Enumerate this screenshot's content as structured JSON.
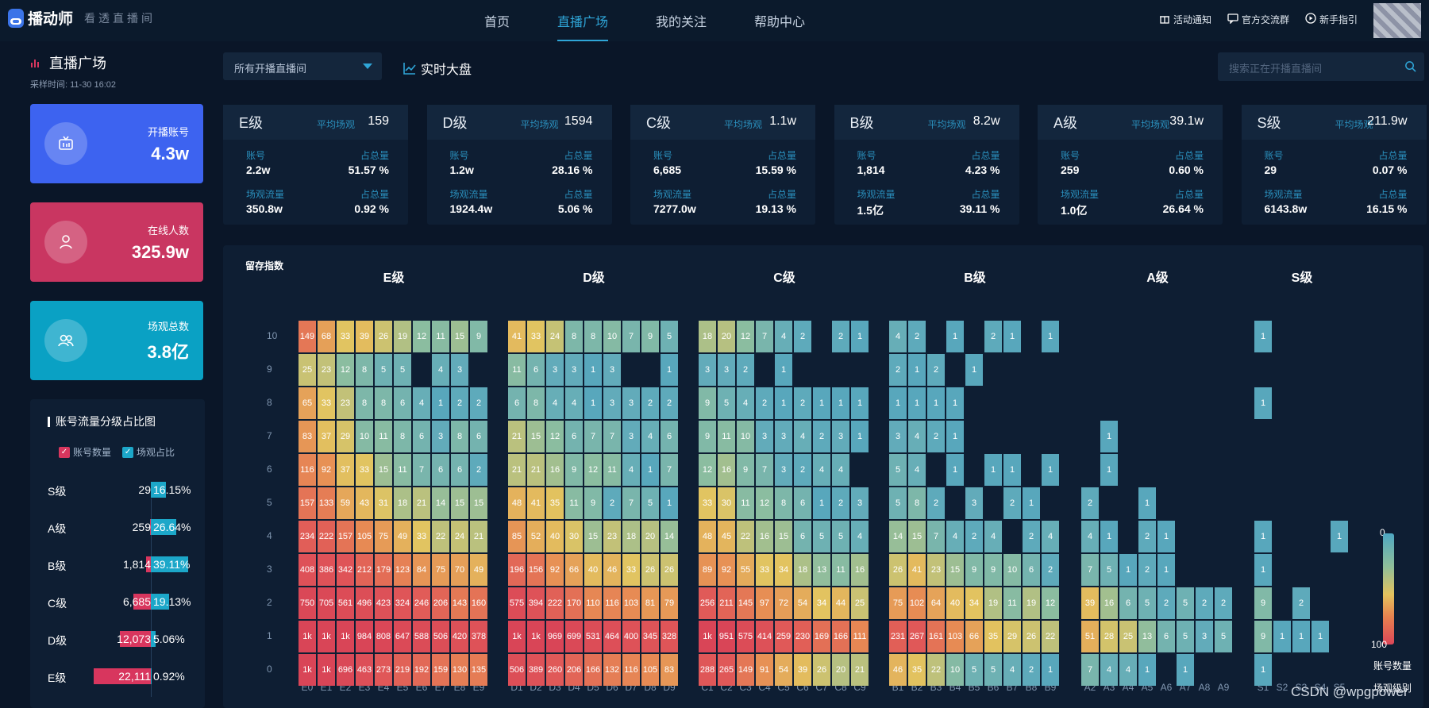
{
  "brand": {
    "name": "播动师",
    "slogan": "看透直播间"
  },
  "nav": [
    "首页",
    "直播广场",
    "我的关注",
    "帮助中心"
  ],
  "nav_active": 1,
  "topright": [
    {
      "label": "活动通知",
      "icon": "gift-icon"
    },
    {
      "label": "官方交流群",
      "icon": "chat-icon"
    },
    {
      "label": "新手指引",
      "icon": "play-icon"
    }
  ],
  "sidebar": {
    "title": "直播广场",
    "sample_time": "采样时间:   11-30 16:02"
  },
  "stats": [
    {
      "label": "开播账号",
      "value": "4.3w",
      "color": "#3d63f0",
      "icon": "tv-icon"
    },
    {
      "label": "在线人数",
      "value": "325.9w",
      "color": "#c93661",
      "icon": "user-icon"
    },
    {
      "label": "场观总数",
      "value": "3.8亿",
      "color": "#0aa1c4",
      "icon": "group-icon"
    }
  ],
  "ratio": {
    "title": "账号流量分级占比图",
    "legend": [
      "账号数量",
      "场观占比"
    ],
    "rows": [
      {
        "grade": "S级",
        "count": "29",
        "pct": "16.15%",
        "count_frac": 0.0013,
        "pct_frac": 0.1615
      },
      {
        "grade": "A级",
        "count": "259",
        "pct": "26.64%",
        "count_frac": 0.0117,
        "pct_frac": 0.2664
      },
      {
        "grade": "B级",
        "count": "1,814",
        "pct": "39.11%",
        "count_frac": 0.082,
        "pct_frac": 0.3911
      },
      {
        "grade": "C级",
        "count": "6,685",
        "pct": "19.13%",
        "count_frac": 0.302,
        "pct_frac": 0.1913
      },
      {
        "grade": "D级",
        "count": "12,073",
        "pct": "5.06%",
        "count_frac": 0.546,
        "pct_frac": 0.0506
      },
      {
        "grade": "E级",
        "count": "22,111",
        "pct": "0.92%",
        "count_frac": 1.0,
        "pct_frac": 0.0092
      }
    ]
  },
  "filter": {
    "selected": "所有开播直播间"
  },
  "realtime_label": "实时大盘",
  "search": {
    "placeholder": "搜索正在开播直播间"
  },
  "grades": [
    {
      "name": "E级",
      "avg_label": "平均场观",
      "avg": "159",
      "acc_label": "账号",
      "acc": "2.2w",
      "share_label": "占总量",
      "acc_share": "51.57 %",
      "flow_label": "场观流量",
      "flow": "350.8w",
      "flow_share": "0.92 %"
    },
    {
      "name": "D级",
      "avg_label": "平均场观",
      "avg": "1594",
      "acc_label": "账号",
      "acc": "1.2w",
      "share_label": "占总量",
      "acc_share": "28.16 %",
      "flow_label": "场观流量",
      "flow": "1924.4w",
      "flow_share": "5.06 %"
    },
    {
      "name": "C级",
      "avg_label": "平均场观",
      "avg": "1.1w",
      "acc_label": "账号",
      "acc": "6,685",
      "share_label": "占总量",
      "acc_share": "15.59 %",
      "flow_label": "场观流量",
      "flow": "7277.0w",
      "flow_share": "19.13 %"
    },
    {
      "name": "B级",
      "avg_label": "平均场观",
      "avg": "8.2w",
      "acc_label": "账号",
      "acc": "1,814",
      "share_label": "占总量",
      "acc_share": "4.23 %",
      "flow_label": "场观流量",
      "flow": "1.5亿",
      "flow_share": "39.11 %"
    },
    {
      "name": "A级",
      "avg_label": "平均场观",
      "avg": "39.1w",
      "acc_label": "账号",
      "acc": "259",
      "share_label": "占总量",
      "acc_share": "0.60 %",
      "flow_label": "场观流量",
      "flow": "1.0亿",
      "flow_share": "26.64 %"
    },
    {
      "name": "S级",
      "avg_label": "平均场观",
      "avg": "211.9w",
      "acc_label": "账号",
      "acc": "29",
      "share_label": "占总量",
      "acc_share": "0.07 %",
      "flow_label": "场观流量",
      "flow": "6143.8w",
      "flow_share": "16.15 %"
    }
  ],
  "chart_data": {
    "type": "heatmap",
    "y_title": "留存指数",
    "y_labels": [
      "0",
      "1",
      "2",
      "3",
      "4",
      "5",
      "6",
      "7",
      "8",
      "9",
      "10"
    ],
    "scale_min": "0",
    "scale_max": "100",
    "scale_label": "账号数量",
    "scale_label2": "场观级别",
    "groups": [
      {
        "name": "E级",
        "x": [
          "E0",
          "E1",
          "E2",
          "E3",
          "E4",
          "E5",
          "E6",
          "E7",
          "E8",
          "E9"
        ],
        "rows": [
          [
            "1k",
            "1k",
            "696",
            "463",
            "273",
            "219",
            "192",
            "159",
            "130",
            "135"
          ],
          [
            "1k",
            "1k",
            "1k",
            "984",
            "808",
            "647",
            "588",
            "506",
            "420",
            "378"
          ],
          [
            "750",
            "705",
            "561",
            "496",
            "423",
            "324",
            "246",
            "206",
            "143",
            "160"
          ],
          [
            "408",
            "386",
            "342",
            "212",
            "179",
            "123",
            "84",
            "75",
            "70",
            "49"
          ],
          [
            "234",
            "222",
            "157",
            "105",
            "75",
            "49",
            "33",
            "22",
            "24",
            "21"
          ],
          [
            "157",
            "133",
            "59",
            "43",
            "31",
            "18",
            "21",
            "14",
            "15",
            "15"
          ],
          [
            "116",
            "92",
            "37",
            "33",
            "15",
            "11",
            "7",
            "6",
            "6",
            "2"
          ],
          [
            "83",
            "37",
            "29",
            "10",
            "11",
            "8",
            "6",
            "3",
            "8",
            "6"
          ],
          [
            "65",
            "33",
            "23",
            "8",
            "8",
            "6",
            "4",
            "1",
            "2",
            "2"
          ],
          [
            "25",
            "23",
            "12",
            "8",
            "5",
            "5",
            "",
            "4",
            "3",
            ""
          ],
          [
            "149",
            "68",
            "33",
            "39",
            "26",
            "19",
            "12",
            "11",
            "15",
            "9"
          ]
        ]
      },
      {
        "name": "D级",
        "x": [
          "D1",
          "D2",
          "D3",
          "D4",
          "D5",
          "D6",
          "D7",
          "D8",
          "D9"
        ],
        "rows": [
          [
            "506",
            "389",
            "260",
            "206",
            "166",
            "132",
            "116",
            "105",
            "83"
          ],
          [
            "1k",
            "1k",
            "969",
            "699",
            "531",
            "464",
            "400",
            "345",
            "328"
          ],
          [
            "575",
            "394",
            "222",
            "170",
            "110",
            "116",
            "103",
            "81",
            "79"
          ],
          [
            "196",
            "156",
            "92",
            "66",
            "40",
            "46",
            "33",
            "26",
            "26"
          ],
          [
            "85",
            "52",
            "40",
            "30",
            "15",
            "23",
            "18",
            "20",
            "14"
          ],
          [
            "48",
            "41",
            "35",
            "11",
            "9",
            "2",
            "7",
            "5",
            "1"
          ],
          [
            "21",
            "21",
            "16",
            "9",
            "12",
            "11",
            "4",
            "1",
            "7"
          ],
          [
            "21",
            "15",
            "12",
            "6",
            "7",
            "7",
            "3",
            "4",
            "6"
          ],
          [
            "6",
            "8",
            "4",
            "4",
            "1",
            "3",
            "3",
            "2",
            "2"
          ],
          [
            "11",
            "6",
            "3",
            "3",
            "1",
            "3",
            "",
            "",
            "1"
          ],
          [
            "41",
            "33",
            "24",
            "8",
            "8",
            "10",
            "7",
            "9",
            "5"
          ]
        ]
      },
      {
        "name": "C级",
        "x": [
          "C1",
          "C2",
          "C3",
          "C4",
          "C5",
          "C6",
          "C7",
          "C8",
          "C9"
        ],
        "rows": [
          [
            "288",
            "265",
            "149",
            "91",
            "54",
            "39",
            "26",
            "20",
            "21"
          ],
          [
            "1k",
            "951",
            "575",
            "414",
            "259",
            "230",
            "169",
            "166",
            "111"
          ],
          [
            "256",
            "211",
            "145",
            "97",
            "72",
            "54",
            "34",
            "44",
            "25"
          ],
          [
            "89",
            "92",
            "55",
            "33",
            "34",
            "18",
            "13",
            "11",
            "16"
          ],
          [
            "48",
            "45",
            "22",
            "16",
            "15",
            "6",
            "5",
            "5",
            "4"
          ],
          [
            "33",
            "30",
            "11",
            "12",
            "8",
            "6",
            "1",
            "2",
            "3"
          ],
          [
            "12",
            "16",
            "9",
            "7",
            "3",
            "2",
            "4",
            "4",
            ""
          ],
          [
            "9",
            "11",
            "10",
            "3",
            "3",
            "4",
            "2",
            "3",
            "1"
          ],
          [
            "9",
            "5",
            "4",
            "2",
            "1",
            "2",
            "1",
            "1",
            "1"
          ],
          [
            "3",
            "3",
            "2",
            "",
            "1",
            "",
            "",
            "",
            ""
          ],
          [
            "18",
            "20",
            "12",
            "7",
            "4",
            "2",
            "",
            "2",
            "1"
          ]
        ]
      },
      {
        "name": "B级",
        "x": [
          "B1",
          "B2",
          "B3",
          "B4",
          "B5",
          "B6",
          "B7",
          "B8",
          "B9"
        ],
        "rows": [
          [
            "46",
            "35",
            "22",
            "10",
            "5",
            "5",
            "4",
            "2",
            "1"
          ],
          [
            "231",
            "267",
            "161",
            "103",
            "66",
            "35",
            "29",
            "26",
            "22"
          ],
          [
            "75",
            "102",
            "64",
            "40",
            "34",
            "19",
            "11",
            "19",
            "12"
          ],
          [
            "26",
            "41",
            "23",
            "15",
            "9",
            "9",
            "10",
            "6",
            "2"
          ],
          [
            "14",
            "15",
            "7",
            "4",
            "2",
            "4",
            "",
            "2",
            "4"
          ],
          [
            "5",
            "8",
            "2",
            "",
            "3",
            "",
            "2",
            "1",
            ""
          ],
          [
            "5",
            "4",
            "",
            "1",
            "",
            "1",
            "1",
            "",
            "1"
          ],
          [
            "3",
            "4",
            "2",
            "1",
            "",
            "",
            "",
            "",
            ""
          ],
          [
            "1",
            "1",
            "1",
            "1",
            "",
            "",
            "",
            "",
            ""
          ],
          [
            "2",
            "1",
            "2",
            "",
            "1",
            "",
            "",
            "",
            ""
          ],
          [
            "4",
            "2",
            "",
            "1",
            "",
            "2",
            "1",
            "",
            "1"
          ]
        ]
      },
      {
        "name": "A级",
        "x": [
          "A2",
          "A3",
          "A4",
          "A5",
          "A6",
          "A7",
          "A8",
          "A9"
        ],
        "rows": [
          [
            "7",
            "4",
            "4",
            "1",
            "",
            "1",
            "",
            ""
          ],
          [
            "51",
            "28",
            "25",
            "13",
            "6",
            "5",
            "3",
            "5"
          ],
          [
            "39",
            "16",
            "6",
            "5",
            "2",
            "5",
            "2",
            "2"
          ],
          [
            "7",
            "5",
            "1",
            "2",
            "1",
            "",
            "",
            ""
          ],
          [
            "4",
            "1",
            "",
            "2",
            "1",
            "",
            "",
            ""
          ],
          [
            "2",
            "",
            "",
            "1",
            "",
            "",
            "",
            ""
          ],
          [
            "",
            "1",
            "",
            "",
            "",
            "",
            "",
            ""
          ],
          [
            "",
            "1",
            "",
            "",
            "",
            "",
            "",
            ""
          ],
          [
            "",
            "",
            "",
            "",
            "",
            "",
            "",
            ""
          ],
          [
            "",
            "",
            "",
            "",
            "",
            "",
            "",
            ""
          ],
          [
            "",
            "",
            "",
            "",
            "",
            "",
            "",
            ""
          ]
        ]
      },
      {
        "name": "S级",
        "x": [
          "S1",
          "S2",
          "S3",
          "S4",
          "S5"
        ],
        "rows": [
          [
            "1",
            "",
            "",
            "",
            ""
          ],
          [
            "9",
            "1",
            "1",
            "1",
            ""
          ],
          [
            "9",
            "",
            "2",
            "",
            ""
          ],
          [
            "1",
            "",
            "",
            "",
            ""
          ],
          [
            "1",
            "",
            "",
            "",
            "1"
          ],
          [
            "",
            "",
            "",
            "",
            ""
          ],
          [
            "",
            "",
            "",
            "",
            ""
          ],
          [
            "",
            "",
            "",
            "",
            ""
          ],
          [
            "1",
            "",
            "",
            "",
            ""
          ],
          [
            "",
            "",
            "",
            "",
            ""
          ],
          [
            "1",
            "",
            "",
            "",
            ""
          ]
        ]
      }
    ]
  },
  "watermark": "CSDN @wpgpower"
}
